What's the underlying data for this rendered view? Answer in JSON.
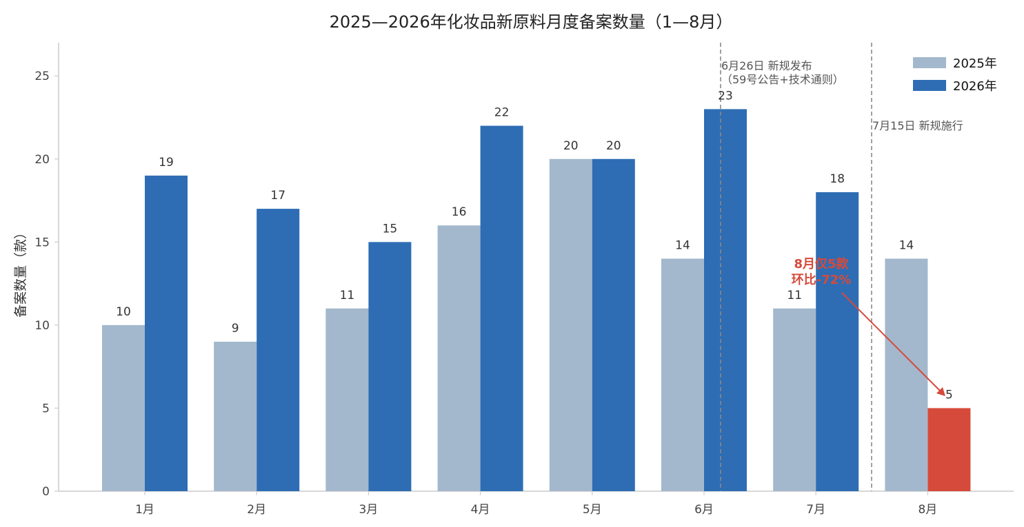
{
  "chart_data": {
    "type": "bar",
    "title": "2025—2026年化妆品新原料月度备案数量（1—8月）",
    "xlabel": "",
    "ylabel": "备案数量（款）",
    "categories": [
      "1月",
      "2月",
      "3月",
      "4月",
      "5月",
      "6月",
      "7月",
      "8月"
    ],
    "series": [
      {
        "name": "2025年",
        "values": [
          10,
          9,
          11,
          16,
          20,
          14,
          11,
          14
        ],
        "color": "#A3B8CC"
      },
      {
        "name": "2026年",
        "values": [
          19,
          17,
          15,
          22,
          20,
          23,
          18,
          5
        ],
        "color": "#2E6DB4",
        "highlight_color": "#D64A3B"
      }
    ],
    "ylim": [
      0,
      27
    ],
    "yticks": [
      0,
      5,
      10,
      15,
      20,
      25
    ],
    "grid": false,
    "legend_position": "top-right",
    "reference_lines": [
      {
        "label_line1": "6月26日 新规发布",
        "label_line2": "（59号公告+技术通则）"
      },
      {
        "label_line1": "7月15日 新规施行"
      }
    ],
    "callout": {
      "line1": "8月仅5款",
      "line2": "环比-72%"
    }
  }
}
